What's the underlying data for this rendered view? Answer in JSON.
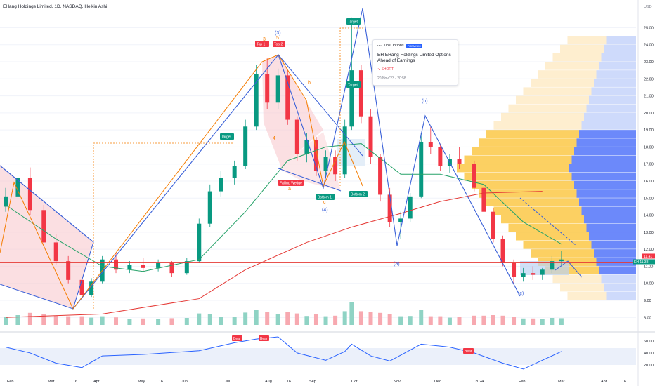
{
  "title": "EHang Holdings Limited, 1D, NASDAQ, Heikin Ashi",
  "currency": "USD",
  "colors": {
    "up": "#089981",
    "down": "#f23645",
    "ma_green": "#26a269",
    "ma_red": "#e53935",
    "blue": "#3960d8",
    "orange": "#f57c00",
    "vp_yellow": "#fbc02d",
    "vp_blue": "#5c7cfa",
    "rsi_line": "#2962ff",
    "pattern_fill": "#f8c9cf"
  },
  "price_axis": {
    "ticks": [
      "25.00",
      "24.00",
      "23.00",
      "22.00",
      "21.00",
      "20.00",
      "19.00",
      "18.00",
      "17.00",
      "16.00",
      "15.00",
      "14.00",
      "13.00",
      "12.00",
      "11.00",
      "10.00",
      "9.00",
      "8.00"
    ],
    "last_price": "11.41",
    "ticker": "EH",
    "ticker_price": "11.38"
  },
  "time_axis": [
    "Feb",
    "Mar",
    "16",
    "Apr",
    "May",
    "16",
    "Jun",
    "Jul",
    "Aug",
    "16",
    "Sep",
    "Oct",
    "Nov",
    "Dec",
    "2024",
    "Feb",
    "Mar",
    "Apr",
    "16"
  ],
  "rsi_axis": [
    "60.00",
    "40.00",
    "20.00"
  ],
  "annotations": {
    "top1": "Top 1",
    "top2": "Top 2",
    "bottom1": "Bottom 1",
    "bottom2": "Bottom 2",
    "falling_wedge": "Falling Wedge",
    "target1": "Target",
    "target2": "Target",
    "target3": "Target",
    "wave3": "(3)",
    "wave4": "(4)",
    "wave_b": "(b)",
    "wave_a": "(a)",
    "wave_c": "(c)",
    "lbl_3": "3",
    "lbl_5": "5",
    "lbl_4": "4",
    "lbl_b": "b",
    "lbl_a": "a",
    "lbl_c": "c",
    "bear1": "Bear",
    "bear2": "Bear",
    "bear3": "Bear"
  },
  "popup": {
    "source": "TipsOptions",
    "badge": "PREMIUM",
    "headline": "EH EHang Holdings Limited Options Ahead of Earnings",
    "signal": "↘ SHORT",
    "timestamp": "20 Nov '23 - 20:58"
  },
  "chart_data": {
    "type": "candlestick",
    "ylim": [
      7.6,
      25.8
    ],
    "date_range": [
      "2023-01-23",
      "2024-04-22"
    ],
    "ohlc_series": [
      [
        "2023-01-23",
        14.5,
        15.6,
        14.2,
        15.1
      ],
      [
        "2023-02-01",
        15.1,
        16.6,
        14.6,
        16.2
      ],
      [
        "2023-02-10",
        16.2,
        16.8,
        14.0,
        14.3
      ],
      [
        "2023-02-20",
        14.3,
        14.6,
        12.2,
        12.4
      ],
      [
        "2023-03-01",
        12.4,
        12.9,
        11.1,
        11.3
      ],
      [
        "2023-03-10",
        11.3,
        11.6,
        10.0,
        10.2
      ],
      [
        "2023-03-20",
        10.2,
        10.6,
        9.0,
        9.3
      ],
      [
        "2023-03-27",
        9.3,
        10.3,
        9.2,
        10.1
      ],
      [
        "2023-04-04",
        10.1,
        11.6,
        10.0,
        11.4
      ],
      [
        "2023-04-14",
        11.4,
        11.8,
        10.6,
        10.8
      ],
      [
        "2023-04-24",
        10.8,
        11.3,
        10.6,
        11.1
      ],
      [
        "2023-05-04",
        11.1,
        11.5,
        10.7,
        10.9
      ],
      [
        "2023-05-15",
        10.9,
        11.4,
        10.7,
        11.2
      ],
      [
        "2023-05-25",
        11.2,
        11.3,
        10.4,
        10.6
      ],
      [
        "2023-06-05",
        10.6,
        11.5,
        10.5,
        11.3
      ],
      [
        "2023-06-14",
        11.3,
        13.8,
        11.2,
        13.5
      ],
      [
        "2023-06-22",
        13.5,
        15.8,
        13.3,
        15.4
      ],
      [
        "2023-06-30",
        15.4,
        16.6,
        15.1,
        16.2
      ],
      [
        "2023-07-10",
        16.2,
        17.2,
        15.8,
        16.9
      ],
      [
        "2023-07-18",
        16.9,
        19.6,
        16.7,
        19.2
      ],
      [
        "2023-07-26",
        19.2,
        22.8,
        19.0,
        22.3
      ],
      [
        "2023-08-03",
        22.3,
        23.2,
        20.2,
        20.6
      ],
      [
        "2023-08-11",
        20.6,
        22.6,
        20.2,
        22.2
      ],
      [
        "2023-08-18",
        22.2,
        22.5,
        19.3,
        19.6
      ],
      [
        "2023-08-25",
        19.6,
        19.8,
        17.2,
        17.6
      ],
      [
        "2023-09-01",
        17.6,
        18.8,
        17.1,
        18.4
      ],
      [
        "2023-09-08",
        18.4,
        18.6,
        16.3,
        16.6
      ],
      [
        "2023-09-15",
        16.6,
        17.8,
        16.2,
        17.4
      ],
      [
        "2023-09-22",
        17.4,
        17.8,
        16.0,
        16.4
      ],
      [
        "2023-09-29",
        16.4,
        19.6,
        16.2,
        19.2
      ],
      [
        "2023-10-04",
        19.2,
        25.6,
        19.0,
        22.5
      ],
      [
        "2023-10-11",
        22.5,
        22.8,
        19.4,
        19.8
      ],
      [
        "2023-10-18",
        19.8,
        20.2,
        17.0,
        17.4
      ],
      [
        "2023-10-25",
        17.4,
        17.6,
        14.8,
        15.2
      ],
      [
        "2023-11-01",
        15.2,
        15.6,
        13.3,
        13.6
      ],
      [
        "2023-11-09",
        13.6,
        14.2,
        12.6,
        13.8
      ],
      [
        "2023-11-16",
        13.8,
        15.3,
        13.6,
        15.1
      ],
      [
        "2023-11-24",
        15.1,
        18.8,
        15.0,
        18.3
      ],
      [
        "2023-12-01",
        18.3,
        19.2,
        17.6,
        18.0
      ],
      [
        "2023-12-08",
        18.0,
        18.2,
        16.6,
        16.9
      ],
      [
        "2023-12-15",
        16.9,
        17.6,
        16.5,
        17.3
      ],
      [
        "2023-12-22",
        17.3,
        18.0,
        16.7,
        17.0
      ],
      [
        "2024-01-02",
        17.0,
        17.2,
        15.4,
        15.6
      ],
      [
        "2024-01-09",
        15.6,
        15.8,
        14.0,
        14.2
      ],
      [
        "2024-01-16",
        14.2,
        14.4,
        12.4,
        12.6
      ],
      [
        "2024-01-23",
        12.6,
        12.8,
        11.0,
        11.2
      ],
      [
        "2024-01-31",
        11.2,
        11.4,
        10.0,
        10.4
      ],
      [
        "2024-02-07",
        10.4,
        10.9,
        10.1,
        10.6
      ],
      [
        "2024-02-14",
        10.6,
        11.0,
        10.2,
        10.5
      ],
      [
        "2024-02-21",
        10.5,
        10.9,
        10.2,
        10.8
      ],
      [
        "2024-02-28",
        10.8,
        11.6,
        10.6,
        11.3
      ],
      [
        "2024-03-06",
        11.3,
        11.9,
        11.0,
        11.4
      ]
    ],
    "moving_averages": [
      {
        "name": "MA green",
        "points": [
          [
            "2023-01-23",
            14.6
          ],
          [
            "2023-03-01",
            12.6
          ],
          [
            "2023-04-04",
            11.0
          ],
          [
            "2023-05-04",
            10.7
          ],
          [
            "2023-06-14",
            11.4
          ],
          [
            "2023-07-18",
            14.2
          ],
          [
            "2023-08-18",
            17.2
          ],
          [
            "2023-09-15",
            18.0
          ],
          [
            "2023-10-11",
            18.2
          ],
          [
            "2023-11-09",
            16.4
          ],
          [
            "2023-12-08",
            16.4
          ],
          [
            "2024-01-09",
            15.8
          ],
          [
            "2024-02-07",
            13.6
          ],
          [
            "2024-03-06",
            12.3
          ]
        ]
      },
      {
        "name": "MA red",
        "points": [
          [
            "2023-01-23",
            8.0
          ],
          [
            "2023-04-04",
            8.2
          ],
          [
            "2023-06-14",
            9.1
          ],
          [
            "2023-07-18",
            10.8
          ],
          [
            "2023-09-01",
            12.4
          ],
          [
            "2023-10-04",
            13.3
          ],
          [
            "2023-11-09",
            14.1
          ],
          [
            "2023-12-08",
            14.8
          ],
          [
            "2024-01-09",
            15.3
          ],
          [
            "2024-02-21",
            15.4
          ]
        ]
      }
    ],
    "horizontal_line": 11.2,
    "rsi": {
      "ylim": [
        18,
        66
      ],
      "points": [
        [
          "2023-01-23",
          52
        ],
        [
          "2023-02-10",
          44
        ],
        [
          "2023-03-01",
          30
        ],
        [
          "2023-03-20",
          24
        ],
        [
          "2023-04-04",
          40
        ],
        [
          "2023-05-04",
          42
        ],
        [
          "2023-06-14",
          47
        ],
        [
          "2023-07-10",
          58
        ],
        [
          "2023-07-26",
          63
        ],
        [
          "2023-08-11",
          66
        ],
        [
          "2023-08-25",
          44
        ],
        [
          "2023-09-15",
          34
        ],
        [
          "2023-09-29",
          46
        ],
        [
          "2023-10-04",
          56
        ],
        [
          "2023-10-18",
          40
        ],
        [
          "2023-11-01",
          33
        ],
        [
          "2023-11-24",
          56
        ],
        [
          "2023-12-15",
          52
        ],
        [
          "2024-01-02",
          44
        ],
        [
          "2024-01-23",
          30
        ],
        [
          "2024-02-07",
          22
        ],
        [
          "2024-02-21",
          34
        ],
        [
          "2024-03-06",
          46
        ]
      ]
    }
  }
}
